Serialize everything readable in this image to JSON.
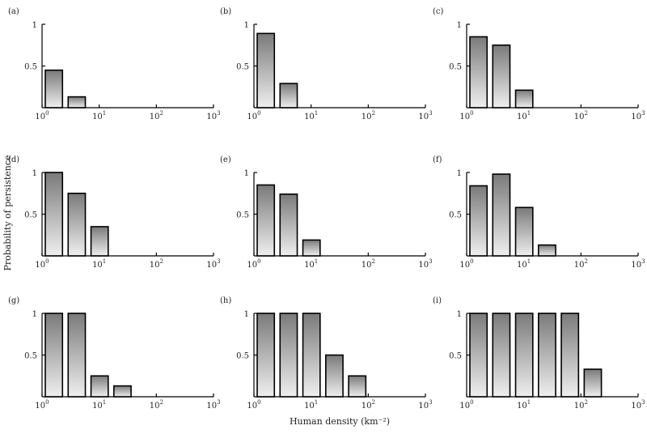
{
  "chart_data": {
    "type": "bar",
    "title": "",
    "xlabel": "Human density (km⁻²)",
    "ylabel": "Probability of persistence",
    "x_scale": "log",
    "xlim": [
      1,
      1000
    ],
    "ylim": [
      0,
      1
    ],
    "x_ticks": [
      {
        "value": 1,
        "base": "10",
        "exp": "0"
      },
      {
        "value": 10,
        "base": "10",
        "exp": "1"
      },
      {
        "value": 100,
        "base": "10",
        "exp": "2"
      },
      {
        "value": 1000,
        "base": "10",
        "exp": "3"
      }
    ],
    "y_ticks": [
      {
        "value": 0.5,
        "label": "0.5"
      },
      {
        "value": 1,
        "label": "1"
      }
    ],
    "bin_edges": [
      1,
      2.512,
      6.31,
      15.85,
      39.81,
      100,
      251.2,
      631
    ],
    "panels": [
      {
        "label": "(a)",
        "values": [
          0.45,
          0.13
        ]
      },
      {
        "label": "(b)",
        "values": [
          0.89,
          0.29
        ]
      },
      {
        "label": "(c)",
        "values": [
          0.85,
          0.75,
          0.21
        ]
      },
      {
        "label": "(d)",
        "values": [
          1.0,
          0.75,
          0.35
        ]
      },
      {
        "label": "(e)",
        "values": [
          0.85,
          0.74,
          0.19
        ]
      },
      {
        "label": "(f)",
        "values": [
          0.84,
          0.98,
          0.58,
          0.13
        ]
      },
      {
        "label": "(g)",
        "values": [
          1.0,
          1.0,
          0.25,
          0.13
        ]
      },
      {
        "label": "(h)",
        "values": [
          1.0,
          1.0,
          1.0,
          0.5,
          0.25
        ]
      },
      {
        "label": "(i)",
        "values": [
          1.0,
          1.0,
          1.0,
          1.0,
          1.0,
          0.33
        ]
      }
    ]
  }
}
